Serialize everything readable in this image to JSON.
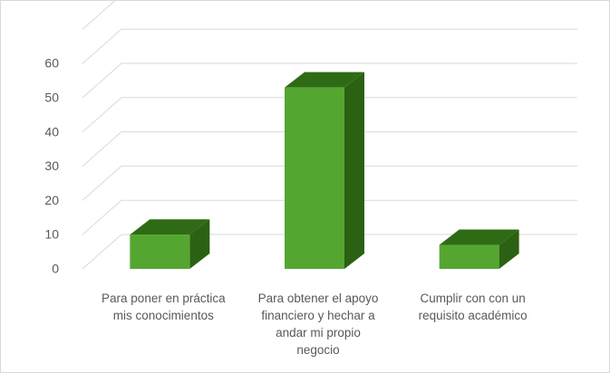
{
  "chart_data": {
    "type": "bar",
    "style": "3d-column",
    "categories": [
      [
        "Para poner en práctica",
        "mis conocimientos"
      ],
      [
        "Para obtener el apoyo",
        "financiero y hechar a",
        "andar mi propio",
        "negocio"
      ],
      [
        "Cumplir con con un",
        "requisito académico"
      ]
    ],
    "values": [
      10,
      53,
      7
    ],
    "ylim": [
      0,
      70
    ],
    "y_ticks": [
      0,
      10,
      20,
      30,
      40,
      50,
      60
    ],
    "grid": true,
    "legend": "none",
    "colors": {
      "front": "#55a630",
      "top": "#2f6b14",
      "side": "#2b6112",
      "edge": "#3c7d1f",
      "grid": "#d9d9d9",
      "text": "#595959"
    }
  }
}
